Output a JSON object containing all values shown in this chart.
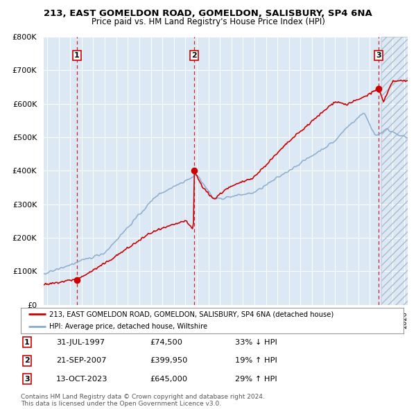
{
  "title_line1": "213, EAST GOMELDON ROAD, GOMELDON, SALISBURY, SP4 6NA",
  "title_line2": "Price paid vs. HM Land Registry's House Price Index (HPI)",
  "ylim": [
    0,
    800000
  ],
  "xlim_start": 1994.7,
  "xlim_end": 2026.3,
  "bg_color": "#dce9f5",
  "grid_color": "#ffffff",
  "sale_dates": [
    1997.58,
    2007.75,
    2023.79
  ],
  "sale_prices": [
    74500,
    399950,
    645000
  ],
  "sale_labels": [
    "1",
    "2",
    "3"
  ],
  "sale_color": "#cc0000",
  "hpi_color": "#88aacc",
  "legend_line1": "213, EAST GOMELDON ROAD, GOMELDON, SALISBURY, SP4 6NA (detached house)",
  "legend_line2": "HPI: Average price, detached house, Wiltshire",
  "table_rows": [
    [
      "1",
      "31-JUL-1997",
      "£74,500",
      "33% ↓ HPI"
    ],
    [
      "2",
      "21-SEP-2007",
      "£399,950",
      "19% ↑ HPI"
    ],
    [
      "3",
      "13-OCT-2023",
      "£645,000",
      "29% ↑ HPI"
    ]
  ],
  "footnote": "Contains HM Land Registry data © Crown copyright and database right 2024.\nThis data is licensed under the Open Government Licence v3.0.",
  "dashed_line_color": "#cc0000",
  "hatch_color": "#bbccdd"
}
